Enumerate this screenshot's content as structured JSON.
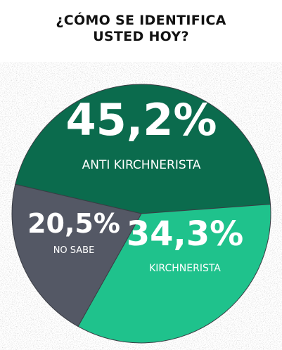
{
  "chart_data": {
    "type": "pie",
    "title_lines": [
      "¿CÓMO SE IDENTIFICA",
      "USTED HOY?"
    ],
    "slices": [
      {
        "label": "ANTI KIRCHNERISTA",
        "value": 45.2,
        "display": "45,2%",
        "color": "#0b6b4d"
      },
      {
        "label": "KIRCHNERISTA",
        "value": 34.3,
        "display": "34,3%",
        "color": "#1fc28c"
      },
      {
        "label": "NO SABE",
        "value": 20.5,
        "display": "20,5%",
        "color": "#545865"
      }
    ]
  }
}
